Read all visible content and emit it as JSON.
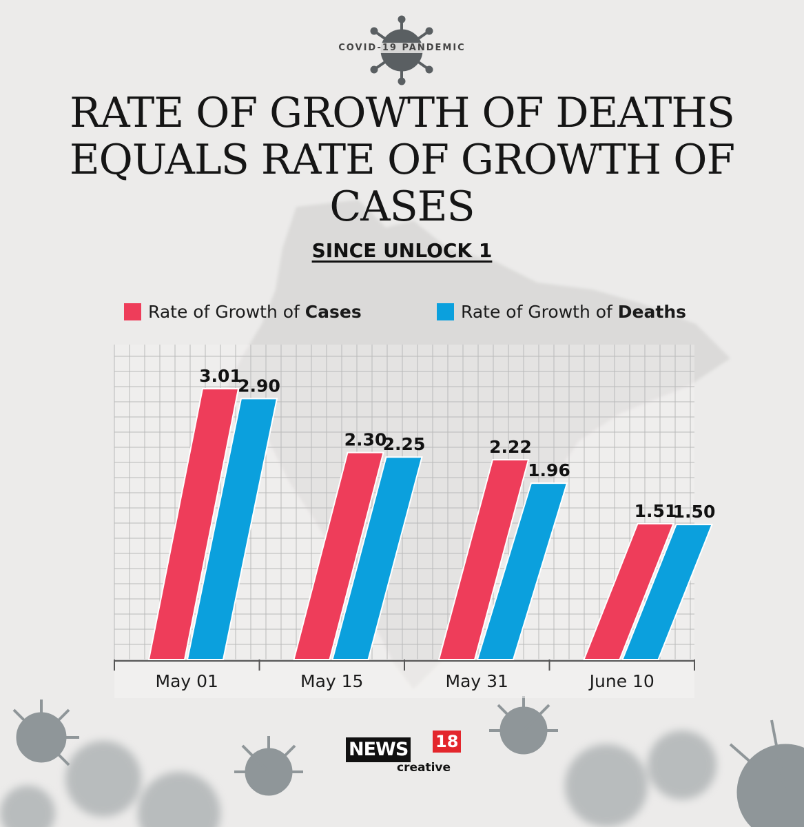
{
  "header": {
    "badge": "COVID-19 PANDEMIC",
    "title": "RATE OF GROWTH OF DEATHS EQUALS RATE OF GROWTH OF CASES",
    "subtitle": "SINCE UNLOCK 1"
  },
  "legend": {
    "cases_prefix": "Rate of Growth of ",
    "cases_bold": "Cases",
    "deaths_prefix": "Rate of Growth of ",
    "deaths_bold": "Deaths"
  },
  "logo": {
    "news": "NEWS",
    "number": "18",
    "tagline": "creative"
  },
  "colors": {
    "cases": "#ee3d5a",
    "deaths": "#0ba0dd",
    "background": "#ecebea"
  },
  "chart_data": {
    "type": "bar",
    "categories": [
      "May 01",
      "May 15",
      "May 31",
      "June 10"
    ],
    "series": [
      {
        "key": "cases",
        "values": [
          3.01,
          2.3,
          2.22,
          1.51
        ]
      },
      {
        "key": "deaths",
        "values": [
          2.9,
          2.25,
          1.96,
          1.5
        ]
      }
    ],
    "value_labels": {
      "cases": [
        "3.01",
        "2.30",
        "2.22",
        "1.51"
      ],
      "deaths": [
        "2.90",
        "2.25",
        "1.96",
        "1.50"
      ]
    },
    "ylim": [
      0,
      3.5
    ],
    "grid": true,
    "legend_position": "top"
  }
}
